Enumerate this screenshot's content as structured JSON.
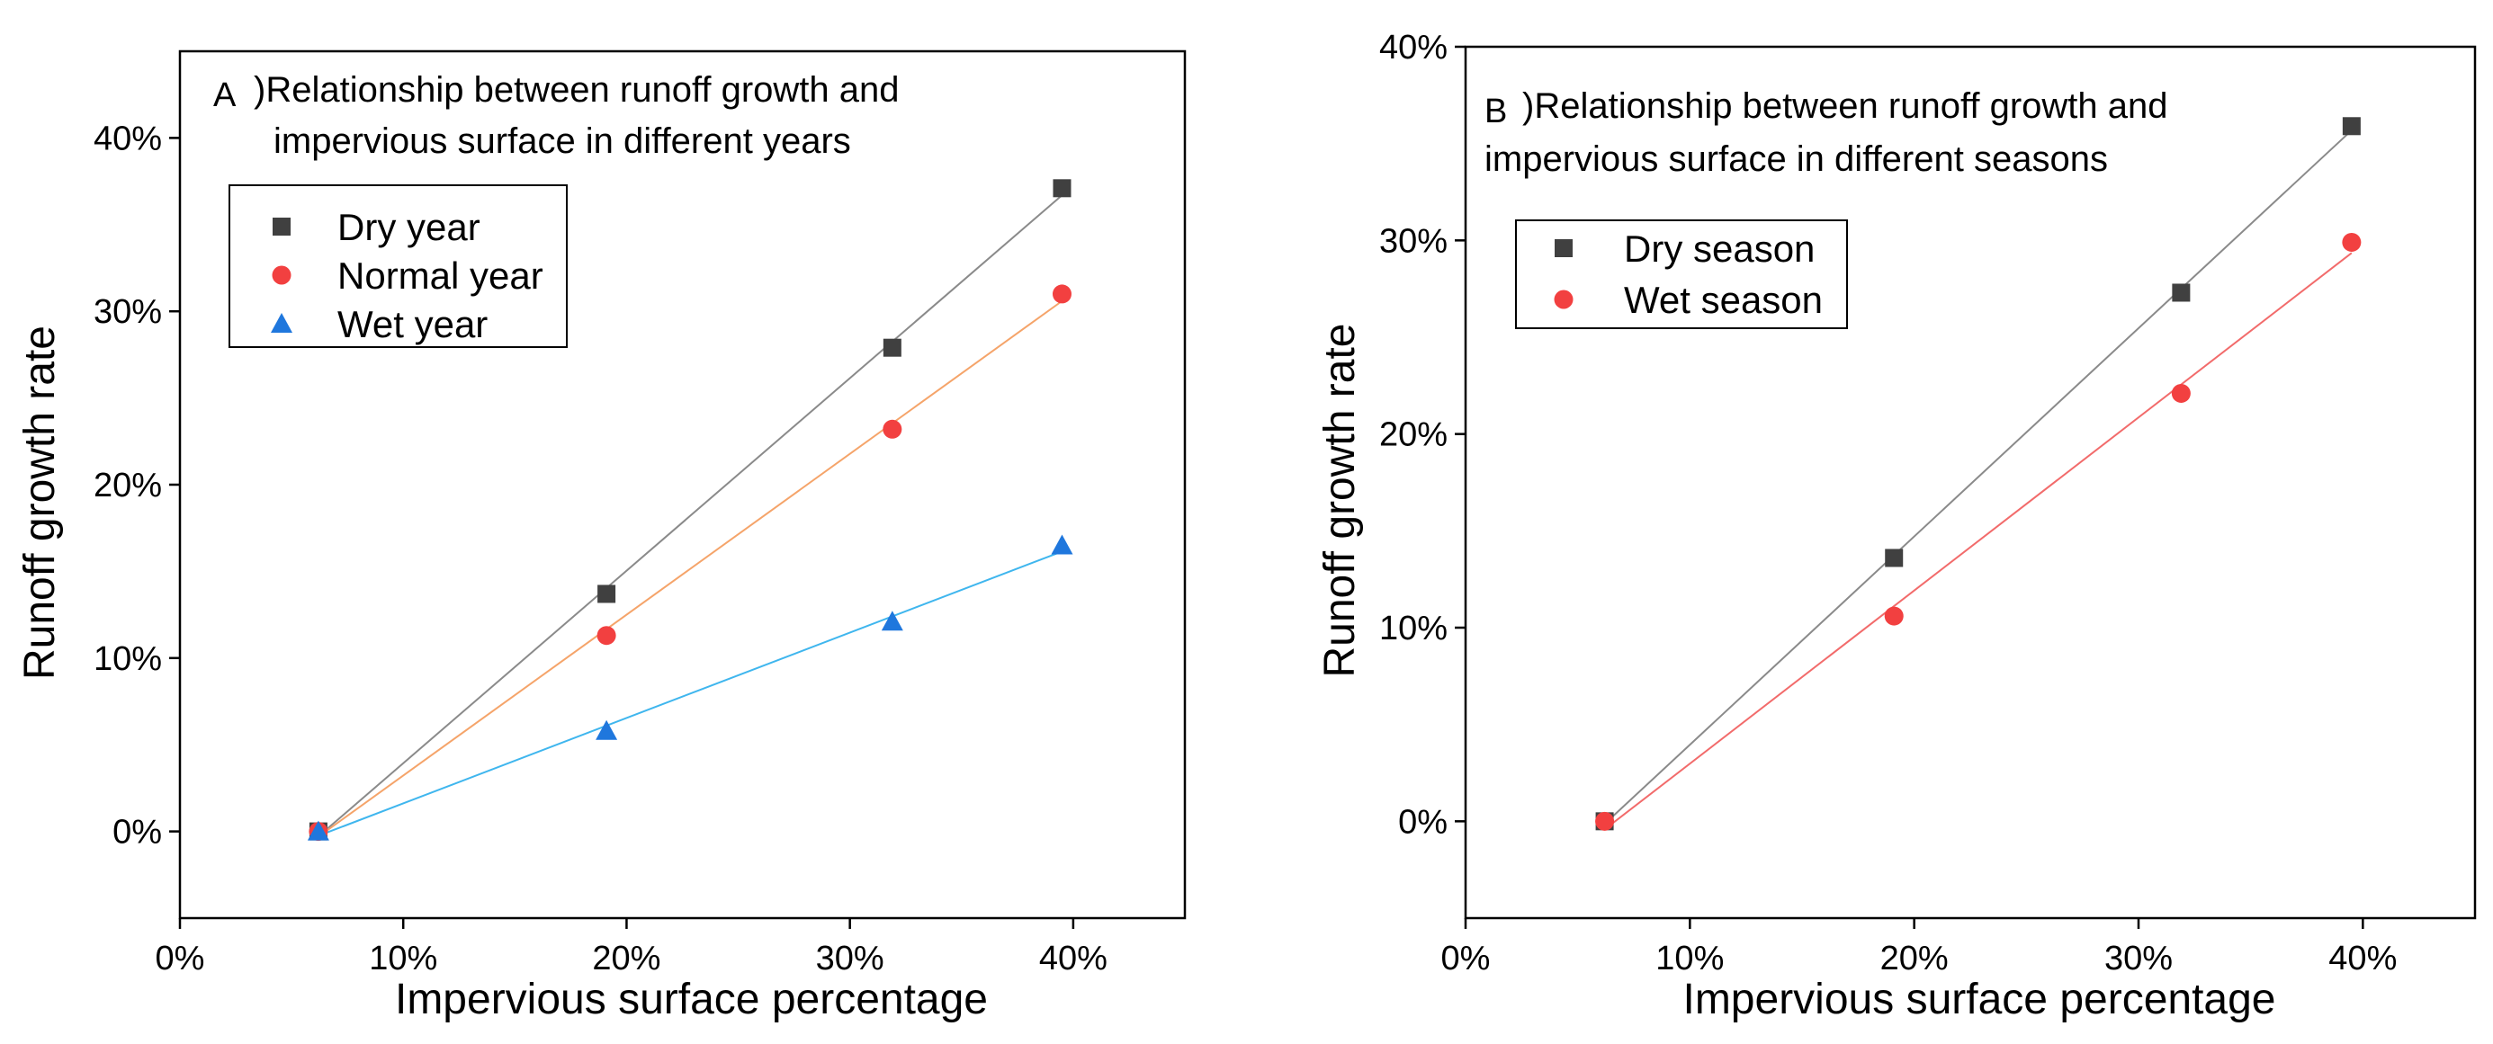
{
  "chart_data": [
    {
      "type": "scatter",
      "panel_letter": "A",
      "title_line1": ")Relationship between runoff growth and",
      "title_line2": "impervious surface in different years",
      "xlabel": "Impervious surface percentage",
      "ylabel": "Runoff growth rate",
      "xlim": [
        0,
        45
      ],
      "ylim": [
        -5,
        45
      ],
      "xticks": [
        0,
        10,
        20,
        30,
        40
      ],
      "xtick_labels": [
        "0%",
        "10%",
        "20%",
        "30%",
        "40%"
      ],
      "yticks": [
        0,
        10,
        20,
        30,
        40
      ],
      "ytick_labels": [
        "0%",
        "10%",
        "20%",
        "30%",
        "40%"
      ],
      "legend_position": "top-left",
      "series": [
        {
          "name": "Dry year",
          "marker": "square",
          "color": "#404040",
          "line_color": "#8a8a8a",
          "x": [
            6.2,
            19.1,
            31.9,
            39.5
          ],
          "y": [
            0,
            13.7,
            27.9,
            37.1
          ]
        },
        {
          "name": "Normal year",
          "marker": "circle",
          "color": "#f24040",
          "line_color": "#f5a46a",
          "x": [
            6.2,
            19.1,
            31.9,
            39.5
          ],
          "y": [
            0,
            11.3,
            23.2,
            31.0
          ]
        },
        {
          "name": "Wet year",
          "marker": "triangle",
          "color": "#1f77dd",
          "line_color": "#3fb6ee",
          "x": [
            6.2,
            19.1,
            31.9,
            39.5
          ],
          "y": [
            0,
            5.8,
            12.1,
            16.5
          ]
        }
      ]
    },
    {
      "type": "scatter",
      "panel_letter": "B",
      "title_line1": ")Relationship between runoff growth and",
      "title_line2": "impervious surface in different seasons",
      "xlabel": "Impervious surface percentage",
      "ylabel": "Runoff growth rate",
      "xlim": [
        0,
        45
      ],
      "ylim": [
        -5,
        40
      ],
      "xticks": [
        0,
        10,
        20,
        30,
        40
      ],
      "xtick_labels": [
        "0%",
        "10%",
        "20%",
        "30%",
        "40%"
      ],
      "yticks": [
        0,
        10,
        20,
        30,
        40
      ],
      "ytick_labels": [
        "0%",
        "10%",
        "20%",
        "30%",
        "40%"
      ],
      "legend_position": "top-left",
      "series": [
        {
          "name": "Dry season",
          "marker": "square",
          "color": "#404040",
          "line_color": "#8a8a8a",
          "x": [
            6.2,
            19.1,
            31.9,
            39.5
          ],
          "y": [
            0,
            13.6,
            27.3,
            35.9
          ]
        },
        {
          "name": "Wet season",
          "marker": "circle",
          "color": "#f24040",
          "line_color": "#f26b6b",
          "x": [
            6.2,
            19.1,
            31.9,
            39.5
          ],
          "y": [
            0,
            10.6,
            22.1,
            29.9
          ]
        }
      ]
    }
  ]
}
